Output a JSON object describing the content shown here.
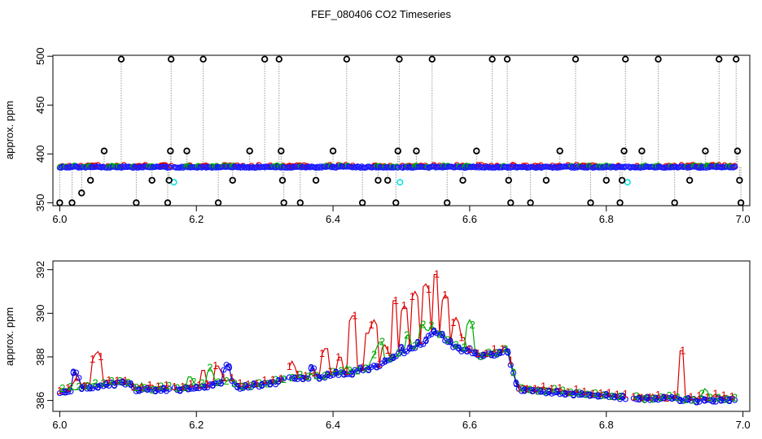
{
  "figure": {
    "title": "FEF_080406  CO2 Timeseries"
  },
  "chart_data": [
    {
      "type": "scatter",
      "ylabel": "approx. ppm",
      "xlim": [
        5.99,
        7.01
      ],
      "ylim": [
        347,
        501
      ],
      "xticks": [
        6.0,
        6.2,
        6.4,
        6.6,
        6.8,
        7.0
      ],
      "yticks": [
        350,
        400,
        450,
        500
      ],
      "grid": false,
      "baseline_y": 386.5,
      "series": [
        {
          "color": "#1a1aff",
          "marker": "circle",
          "segments": [
            [
              6.0,
              6.162
            ],
            [
              6.168,
              6.33
            ],
            [
              6.333,
              6.495
            ],
            [
              6.5,
              6.665
            ],
            [
              6.667,
              6.83
            ],
            [
              6.833,
              6.99
            ]
          ]
        },
        {
          "color": "#00e0e0",
          "marker": "circle",
          "points": [
            [
              6.167,
              371
            ],
            [
              6.498,
              371
            ],
            [
              6.831,
              371
            ]
          ]
        }
      ],
      "spikes": {
        "color": "#000000",
        "marker": "circle",
        "points": [
          [
            6.0,
            350
          ],
          [
            6.018,
            350
          ],
          [
            6.032,
            360
          ],
          [
            6.045,
            373
          ],
          [
            6.065,
            403
          ],
          [
            6.09,
            497
          ],
          [
            6.112,
            350
          ],
          [
            6.135,
            373
          ],
          [
            6.158,
            350
          ],
          [
            6.16,
            373
          ],
          [
            6.162,
            403
          ],
          [
            6.163,
            497
          ],
          [
            6.186,
            403
          ],
          [
            6.21,
            497
          ],
          [
            6.232,
            350
          ],
          [
            6.253,
            373
          ],
          [
            6.278,
            403
          ],
          [
            6.3,
            497
          ],
          [
            6.321,
            497
          ],
          [
            6.324,
            403
          ],
          [
            6.326,
            373
          ],
          [
            6.328,
            350
          ],
          [
            6.352,
            350
          ],
          [
            6.375,
            373
          ],
          [
            6.4,
            403
          ],
          [
            6.42,
            497
          ],
          [
            6.443,
            350
          ],
          [
            6.466,
            373
          ],
          [
            6.48,
            373
          ],
          [
            6.492,
            350
          ],
          [
            6.495,
            403
          ],
          [
            6.497,
            497
          ],
          [
            6.522,
            403
          ],
          [
            6.545,
            497
          ],
          [
            6.567,
            350
          ],
          [
            6.59,
            373
          ],
          [
            6.61,
            403
          ],
          [
            6.633,
            497
          ],
          [
            6.655,
            497
          ],
          [
            6.657,
            373
          ],
          [
            6.66,
            350
          ],
          [
            6.689,
            350
          ],
          [
            6.712,
            373
          ],
          [
            6.732,
            403
          ],
          [
            6.755,
            497
          ],
          [
            6.777,
            350
          ],
          [
            6.8,
            373
          ],
          [
            6.82,
            350
          ],
          [
            6.823,
            373
          ],
          [
            6.826,
            403
          ],
          [
            6.828,
            497
          ],
          [
            6.852,
            403
          ],
          [
            6.876,
            497
          ],
          [
            6.9,
            350
          ],
          [
            6.922,
            373
          ],
          [
            6.945,
            403
          ],
          [
            6.965,
            497
          ],
          [
            6.99,
            497
          ],
          [
            6.992,
            403
          ],
          [
            6.995,
            373
          ],
          [
            6.997,
            350
          ]
        ]
      }
    },
    {
      "type": "line",
      "ylabel": "approx. ppm",
      "xlim": [
        5.99,
        7.01
      ],
      "ylim": [
        385.5,
        392.4
      ],
      "xticks": [
        6.0,
        6.2,
        6.4,
        6.6,
        6.8,
        7.0
      ],
      "yticks": [
        386,
        388,
        390,
        392
      ],
      "grid": false,
      "series": [
        {
          "marker_label": "1",
          "color": "#dd0000"
        },
        {
          "marker_label": "2",
          "color": "#00aa00"
        },
        {
          "marker_label": "3",
          "color": "#0000cc"
        }
      ],
      "base_curve": [
        [
          6.0,
          386.4
        ],
        [
          6.06,
          386.7
        ],
        [
          6.1,
          386.8
        ],
        [
          6.11,
          386.5
        ],
        [
          6.16,
          386.5
        ],
        [
          6.18,
          386.5
        ],
        [
          6.22,
          386.7
        ],
        [
          6.25,
          386.9
        ],
        [
          6.26,
          386.6
        ],
        [
          6.32,
          386.8
        ],
        [
          6.33,
          387.0
        ],
        [
          6.38,
          387.1
        ],
        [
          6.43,
          387.3
        ],
        [
          6.47,
          387.6
        ],
        [
          6.5,
          388.1
        ],
        [
          6.53,
          388.6
        ],
        [
          6.55,
          389.2
        ],
        [
          6.58,
          388.4
        ],
        [
          6.62,
          388.0
        ],
        [
          6.655,
          388.3
        ],
        [
          6.67,
          386.5
        ],
        [
          6.72,
          386.4
        ],
        [
          6.8,
          386.2
        ],
        [
          6.84,
          386.1
        ],
        [
          6.9,
          386.05
        ],
        [
          6.95,
          386.0
        ],
        [
          6.99,
          386.1
        ]
      ],
      "gaps": [
        [
          6.163,
          6.168
        ],
        [
          6.329,
          6.333
        ],
        [
          6.83,
          6.838
        ]
      ],
      "series_peaks": [
        [
          [
            6.025,
            387.1
          ],
          [
            6.05,
            388.0
          ],
          [
            6.055,
            388.3
          ],
          [
            6.21,
            387.5
          ],
          [
            6.23,
            387.7
          ],
          [
            6.34,
            387.8
          ],
          [
            6.39,
            388.5
          ],
          [
            6.41,
            388.1
          ],
          [
            6.43,
            390.0
          ],
          [
            6.45,
            389.2
          ],
          [
            6.46,
            389.7
          ],
          [
            6.475,
            388.6
          ],
          [
            6.49,
            390.7
          ],
          [
            6.505,
            390.4
          ],
          [
            6.52,
            391.0
          ],
          [
            6.535,
            391.4
          ],
          [
            6.55,
            391.9
          ],
          [
            6.565,
            390.9
          ],
          [
            6.58,
            389.8
          ],
          [
            6.59,
            389.0
          ],
          [
            6.91,
            388.4
          ],
          [
            6.96,
            386.3
          ],
          [
            6.985,
            386.2
          ]
        ],
        [
          [
            6.12,
            386.8
          ],
          [
            6.19,
            387.2
          ],
          [
            6.22,
            387.5
          ],
          [
            6.35,
            387.3
          ],
          [
            6.42,
            387.6
          ],
          [
            6.46,
            388.1
          ],
          [
            6.47,
            388.8
          ],
          [
            6.51,
            389.1
          ],
          [
            6.53,
            389.6
          ],
          [
            6.545,
            389.5
          ],
          [
            6.6,
            389.7
          ],
          [
            6.61,
            388.2
          ],
          [
            6.68,
            386.3
          ],
          [
            6.945,
            386.6
          ]
        ],
        [
          [
            6.022,
            387.4
          ],
          [
            6.13,
            386.6
          ],
          [
            6.245,
            387.7
          ],
          [
            6.3,
            386.8
          ],
          [
            6.37,
            387.6
          ],
          [
            6.5,
            388.4
          ],
          [
            6.525,
            388.7
          ],
          [
            6.55,
            389.1
          ],
          [
            6.57,
            388.8
          ],
          [
            6.6,
            388.4
          ],
          [
            6.86,
            386.1
          ]
        ]
      ]
    }
  ]
}
